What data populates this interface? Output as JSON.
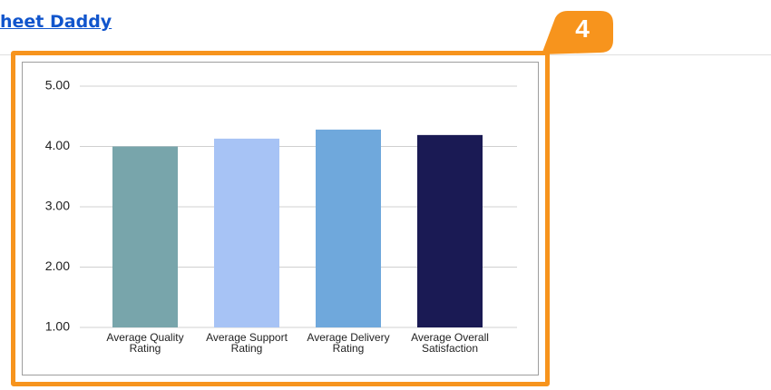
{
  "header": {
    "link": "heet Daddy",
    "badge": "4"
  },
  "chart_data": {
    "type": "bar",
    "categories": [
      "Average Quality Rating",
      "Average Support Rating",
      "Average Delivery Rating",
      "Average Overall Satisfaction"
    ],
    "values": [
      4.0,
      4.13,
      4.28,
      4.19
    ],
    "colors": [
      "#78a5ab",
      "#a7c3f5",
      "#6fa8dc",
      "#1a1a54"
    ],
    "ylim": [
      1,
      5
    ],
    "yticks": [
      {
        "value": 1,
        "label": "1.00"
      },
      {
        "value": 2,
        "label": "2.00"
      },
      {
        "value": 3,
        "label": "3.00"
      },
      {
        "value": 4,
        "label": "4.00"
      },
      {
        "value": 5,
        "label": "5.00"
      }
    ],
    "grid": true
  }
}
